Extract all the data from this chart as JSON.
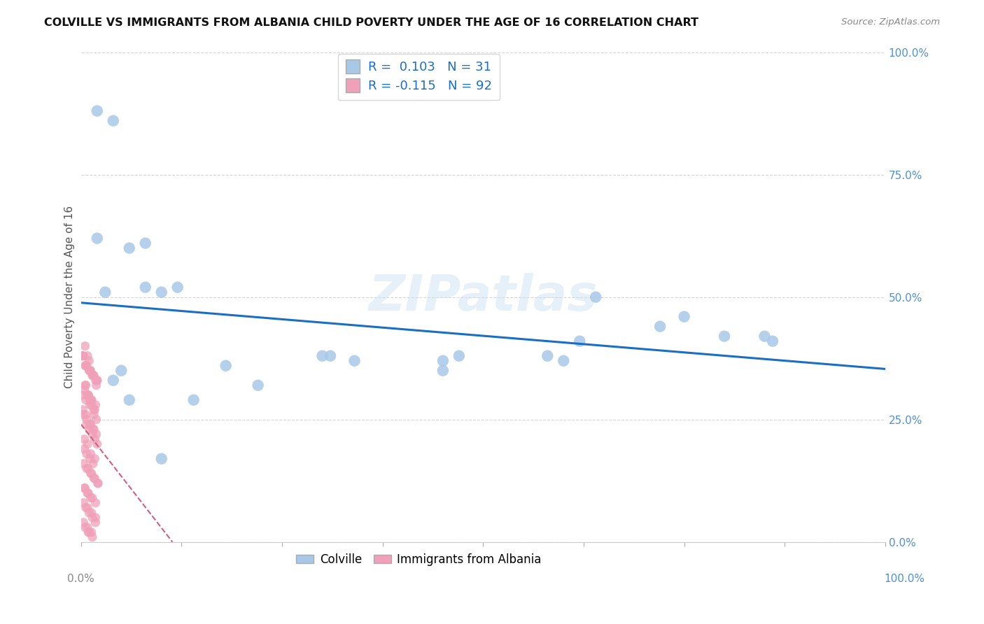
{
  "title": "COLVILLE VS IMMIGRANTS FROM ALBANIA CHILD POVERTY UNDER THE AGE OF 16 CORRELATION CHART",
  "source": "Source: ZipAtlas.com",
  "ylabel": "Child Poverty Under the Age of 16",
  "xmin": 0.0,
  "xmax": 1.0,
  "ymin": 0.0,
  "ymax": 1.0,
  "colville_color": "#a8c8e8",
  "albania_color": "#f0a0b8",
  "trendline_colville_color": "#1a6fc4",
  "trendline_albania_color": "#d06080",
  "colville_R": 0.103,
  "colville_N": 31,
  "albania_R": -0.115,
  "albania_N": 92,
  "legend_label_colville": "Colville",
  "legend_label_albania": "Immigrants from Albania",
  "colville_scatter_x": [
    0.02,
    0.04,
    0.02,
    0.08,
    0.06,
    0.08,
    0.03,
    0.1,
    0.12,
    0.3,
    0.31,
    0.34,
    0.45,
    0.47,
    0.45,
    0.58,
    0.6,
    0.62,
    0.64,
    0.72,
    0.75,
    0.8,
    0.85,
    0.86,
    0.04,
    0.06,
    0.05,
    0.14,
    0.18,
    0.22,
    0.1
  ],
  "colville_scatter_y": [
    0.88,
    0.86,
    0.62,
    0.61,
    0.6,
    0.52,
    0.51,
    0.51,
    0.52,
    0.38,
    0.38,
    0.37,
    0.37,
    0.38,
    0.35,
    0.38,
    0.37,
    0.41,
    0.5,
    0.44,
    0.46,
    0.42,
    0.42,
    0.41,
    0.33,
    0.29,
    0.35,
    0.29,
    0.36,
    0.32,
    0.17
  ],
  "albania_scatter_x": [
    0.005,
    0.008,
    0.01,
    0.012,
    0.015,
    0.018,
    0.006,
    0.009,
    0.011,
    0.013,
    0.016,
    0.019,
    0.007,
    0.01,
    0.014,
    0.017,
    0.02,
    0.004,
    0.007,
    0.011,
    0.015,
    0.009,
    0.013,
    0.017,
    0.021,
    0.004,
    0.008,
    0.012,
    0.003,
    0.006,
    0.01,
    0.014,
    0.018,
    0.003,
    0.007,
    0.011,
    0.016,
    0.02,
    0.005,
    0.009,
    0.013,
    0.018,
    0.002,
    0.006,
    0.011,
    0.015,
    0.019,
    0.004,
    0.008,
    0.012,
    0.017,
    0.003,
    0.007,
    0.012,
    0.016,
    0.021,
    0.005,
    0.009,
    0.014,
    0.018,
    0.002,
    0.006,
    0.011,
    0.015,
    0.02,
    0.004,
    0.008,
    0.013,
    0.017,
    0.003,
    0.007,
    0.012,
    0.016,
    0.001,
    0.005,
    0.01,
    0.014,
    0.019,
    0.002,
    0.006,
    0.011,
    0.016,
    0.008,
    0.013,
    0.018,
    0.003,
    0.008,
    0.013,
    0.009,
    0.014,
    0.005,
    0.01
  ],
  "albania_scatter_y": [
    0.4,
    0.38,
    0.37,
    0.35,
    0.34,
    0.33,
    0.32,
    0.3,
    0.29,
    0.28,
    0.26,
    0.25,
    0.24,
    0.23,
    0.22,
    0.21,
    0.2,
    0.19,
    0.18,
    0.17,
    0.16,
    0.15,
    0.14,
    0.13,
    0.12,
    0.11,
    0.1,
    0.09,
    0.08,
    0.07,
    0.06,
    0.05,
    0.04,
    0.38,
    0.36,
    0.35,
    0.34,
    0.33,
    0.32,
    0.3,
    0.29,
    0.28,
    0.27,
    0.26,
    0.24,
    0.23,
    0.22,
    0.21,
    0.2,
    0.18,
    0.17,
    0.16,
    0.15,
    0.14,
    0.13,
    0.12,
    0.11,
    0.1,
    0.09,
    0.08,
    0.38,
    0.36,
    0.35,
    0.34,
    0.33,
    0.31,
    0.3,
    0.29,
    0.27,
    0.26,
    0.25,
    0.24,
    0.23,
    0.38,
    0.36,
    0.35,
    0.34,
    0.32,
    0.3,
    0.29,
    0.28,
    0.27,
    0.07,
    0.06,
    0.05,
    0.04,
    0.03,
    0.02,
    0.02,
    0.01,
    0.03,
    0.02
  ],
  "watermark_text": "ZIPatlas",
  "background_color": "#ffffff",
  "grid_color": "#cccccc",
  "tick_color_right": "#5090d0",
  "tick_color_bottom_left": "#888888"
}
